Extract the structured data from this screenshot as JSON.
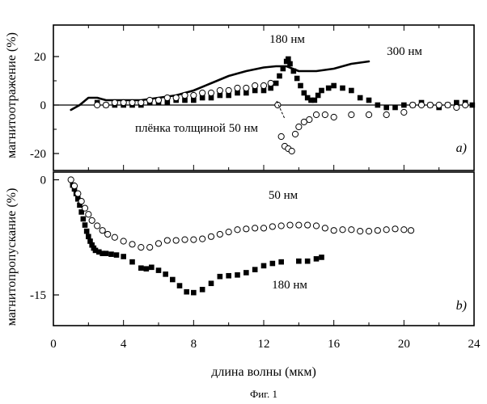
{
  "caption": "Фиг. 1",
  "chart_data": [
    {
      "type": "scatter",
      "panel_label": "a)",
      "ylabel": "магнитоотражение (%)",
      "xlim": [
        0,
        24
      ],
      "ylim": [
        -27,
        33
      ],
      "yticks": [
        -20,
        0,
        20
      ],
      "zero_line": true,
      "annotations": [
        "180 нм",
        "300 нм",
        "плёнка толщиной 50 нм"
      ],
      "series": [
        {
          "name": "300 нм",
          "style": "line",
          "x": [
            1.0,
            1.5,
            2.0,
            2.5,
            3.0,
            4.0,
            5.0,
            6.0,
            7.0,
            8.0,
            9.0,
            10.0,
            11.0,
            12.0,
            12.7,
            13.3,
            14.0,
            15.0,
            16.0,
            17.0,
            17.5,
            18.0
          ],
          "y": [
            -2,
            0,
            3,
            3,
            2,
            2,
            2,
            3,
            4,
            6,
            9,
            12,
            14,
            15.5,
            16,
            16,
            14,
            14,
            15,
            17,
            17.5,
            18
          ]
        },
        {
          "name": "180 нм",
          "style": "filled-squares",
          "x": [
            2.5,
            3.0,
            3.5,
            4.0,
            4.5,
            5.0,
            5.5,
            6.0,
            6.5,
            7.0,
            7.5,
            8.0,
            8.5,
            9.0,
            9.5,
            10.0,
            10.5,
            11.0,
            11.5,
            12.0,
            12.4,
            12.7,
            12.9,
            13.1,
            13.3,
            13.4,
            13.5,
            13.7,
            13.9,
            14.1,
            14.3,
            14.5,
            14.7,
            14.9,
            15.1,
            15.3,
            15.7,
            16.0,
            16.5,
            17.0,
            17.5,
            18.0,
            18.5,
            19.0,
            19.5,
            20.0,
            20.5,
            21.0,
            21.5,
            22.0,
            22.5,
            23.0,
            23.5,
            23.9
          ],
          "y": [
            1,
            0,
            0,
            0,
            0,
            0,
            1,
            1,
            1,
            2,
            2,
            2,
            3,
            3,
            4,
            4,
            5,
            5,
            6,
            6,
            7,
            9,
            12,
            15,
            18,
            19,
            17,
            14,
            11,
            8,
            5,
            3,
            2,
            2,
            4,
            6,
            7,
            8,
            7,
            6,
            3,
            2,
            0,
            -1,
            -1,
            0,
            0,
            1,
            0,
            -1,
            0,
            1,
            1,
            0
          ]
        },
        {
          "name": "50 нм",
          "style": "open-circles",
          "x": [
            2.5,
            3.0,
            3.5,
            4.0,
            4.5,
            5.0,
            5.5,
            6.0,
            6.5,
            7.0,
            7.5,
            8.0,
            8.5,
            9.0,
            9.5,
            10.0,
            10.5,
            11.0,
            11.5,
            12.0,
            12.4,
            12.8,
            13.0,
            13.2,
            13.4,
            13.6,
            13.8,
            14.0,
            14.3,
            14.6,
            15.0,
            15.5,
            16.0,
            17.0,
            18.0,
            19.0,
            20.0,
            20.5,
            21.0,
            21.5,
            22.0,
            22.5,
            23.0,
            23.5
          ],
          "y": [
            0,
            0,
            1,
            1,
            1,
            1,
            2,
            2,
            3,
            3,
            4,
            4,
            5,
            5,
            6,
            6,
            7,
            7,
            8,
            8,
            9,
            0,
            -13,
            -17,
            -18,
            -19,
            -12,
            -9,
            -7,
            -6,
            -4,
            -4,
            -5,
            -4,
            -4,
            -4,
            -3,
            0,
            0,
            0,
            0,
            0,
            -1,
            0
          ]
        }
      ]
    },
    {
      "type": "scatter",
      "panel_label": "b)",
      "ylabel": "магнитопропускание (%)",
      "xlabel": "длина волны (мкм)",
      "xlim": [
        0,
        24
      ],
      "xticks": [
        0,
        4,
        8,
        12,
        16,
        20,
        24
      ],
      "ylim": [
        -19,
        1
      ],
      "yticks": [
        -15,
        0
      ],
      "annotations": [
        "50 нм",
        "180 нм"
      ],
      "series": [
        {
          "name": "180 нм",
          "style": "filled-squares",
          "x": [
            1.1,
            1.2,
            1.3,
            1.4,
            1.5,
            1.6,
            1.7,
            1.8,
            1.9,
            2.0,
            2.1,
            2.2,
            2.3,
            2.4,
            2.6,
            2.8,
            3.0,
            3.3,
            3.6,
            4.0,
            4.5,
            5.0,
            5.3,
            5.6,
            6.0,
            6.4,
            6.8,
            7.2,
            7.6,
            8.0,
            8.5,
            9.0,
            9.5,
            10.0,
            10.5,
            11.0,
            11.5,
            12.0,
            12.5,
            13.0,
            14.0,
            14.5,
            15.0,
            15.3
          ],
          "y": [
            -0.7,
            -1.2,
            -1.8,
            -2.5,
            -3.3,
            -4.2,
            -5.1,
            -5.9,
            -6.7,
            -7.4,
            -8.0,
            -8.5,
            -8.9,
            -9.2,
            -9.4,
            -9.6,
            -9.6,
            -9.7,
            -9.8,
            -10.0,
            -10.7,
            -11.5,
            -11.6,
            -11.4,
            -11.8,
            -12.3,
            -13.0,
            -13.8,
            -14.6,
            -14.7,
            -14.3,
            -13.5,
            -12.6,
            -12.5,
            -12.4,
            -12.1,
            -11.7,
            -11.2,
            -10.9,
            -10.7,
            -10.6,
            -10.6,
            -10.3,
            -10.1
          ]
        },
        {
          "name": "50 нм",
          "style": "open-circles",
          "x": [
            1.0,
            1.2,
            1.4,
            1.6,
            1.8,
            2.0,
            2.2,
            2.5,
            2.8,
            3.1,
            3.5,
            4.0,
            4.5,
            5.0,
            5.5,
            6.0,
            6.5,
            7.0,
            7.5,
            8.0,
            8.5,
            9.0,
            9.5,
            10.0,
            10.5,
            11.0,
            11.5,
            12.0,
            12.5,
            13.0,
            13.5,
            14.0,
            14.5,
            15.0,
            15.5,
            16.0,
            16.5,
            17.0,
            17.5,
            18.0,
            18.5,
            19.0,
            19.5,
            20.0,
            20.4
          ],
          "y": [
            0.0,
            -0.8,
            -1.8,
            -2.8,
            -3.7,
            -4.5,
            -5.3,
            -6.0,
            -6.6,
            -7.1,
            -7.5,
            -8.0,
            -8.4,
            -8.8,
            -8.8,
            -8.3,
            -7.9,
            -7.9,
            -7.8,
            -7.8,
            -7.7,
            -7.4,
            -7.1,
            -6.8,
            -6.5,
            -6.4,
            -6.3,
            -6.3,
            -6.1,
            -6.0,
            -5.9,
            -5.9,
            -5.9,
            -6.0,
            -6.3,
            -6.6,
            -6.5,
            -6.5,
            -6.7,
            -6.7,
            -6.6,
            -6.5,
            -6.4,
            -6.5,
            -6.6
          ]
        }
      ]
    }
  ]
}
